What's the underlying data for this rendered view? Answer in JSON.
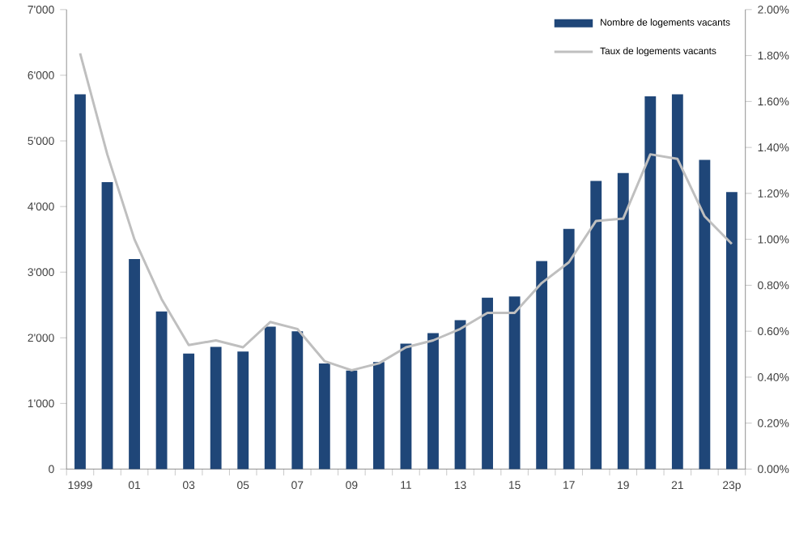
{
  "chart_data": {
    "type": "bar",
    "categories": [
      "1999",
      null,
      "01",
      null,
      "03",
      null,
      "05",
      null,
      "07",
      null,
      "09",
      null,
      "11",
      null,
      "13",
      null,
      "15",
      null,
      "17",
      null,
      "19",
      null,
      "21",
      null,
      "23p"
    ],
    "series": [
      {
        "name": "Nombre de logements vacants",
        "color": "#1f4678",
        "values": [
          5710,
          4370,
          3200,
          2400,
          1760,
          1860,
          1790,
          2170,
          2100,
          1610,
          1500,
          1630,
          1910,
          2070,
          2270,
          2610,
          2630,
          3170,
          3660,
          4390,
          4510,
          5680,
          5710,
          4710,
          4220
        ]
      },
      {
        "name": "Taux de logements vacants",
        "type": "line",
        "axis": "y2",
        "color": "#bfbfbf",
        "values": [
          1.81,
          1.37,
          1.0,
          0.74,
          0.54,
          0.56,
          0.53,
          0.64,
          0.61,
          0.47,
          0.43,
          0.46,
          0.53,
          0.56,
          0.61,
          0.68,
          0.68,
          0.81,
          0.9,
          1.08,
          1.09,
          1.37,
          1.35,
          1.1,
          0.98
        ]
      }
    ],
    "ylim": [
      0,
      7000
    ],
    "yticks": [
      {
        "value": 0,
        "label": "0"
      },
      {
        "value": 1000,
        "label": "1'000"
      },
      {
        "value": 2000,
        "label": "2'000"
      },
      {
        "value": 3000,
        "label": "3'000"
      },
      {
        "value": 4000,
        "label": "4'000"
      },
      {
        "value": 5000,
        "label": "5'000"
      },
      {
        "value": 6000,
        "label": "6'000"
      },
      {
        "value": 7000,
        "label": "7'000"
      }
    ],
    "y2lim": [
      0,
      2
    ],
    "y2ticks": [
      {
        "value": 0,
        "label": "0.00%"
      },
      {
        "value": 0.2,
        "label": "0.20%"
      },
      {
        "value": 0.4,
        "label": "0.40%"
      },
      {
        "value": 0.6,
        "label": "0.60%"
      },
      {
        "value": 0.8,
        "label": "0.80%"
      },
      {
        "value": 1.0,
        "label": "1.00%"
      },
      {
        "value": 1.2,
        "label": "1.20%"
      },
      {
        "value": 1.4,
        "label": "1.40%"
      },
      {
        "value": 1.6,
        "label": "1.60%"
      },
      {
        "value": 1.8,
        "label": "1.80%"
      },
      {
        "value": 2.0,
        "label": "2.00%"
      }
    ],
    "legend": "top right"
  }
}
